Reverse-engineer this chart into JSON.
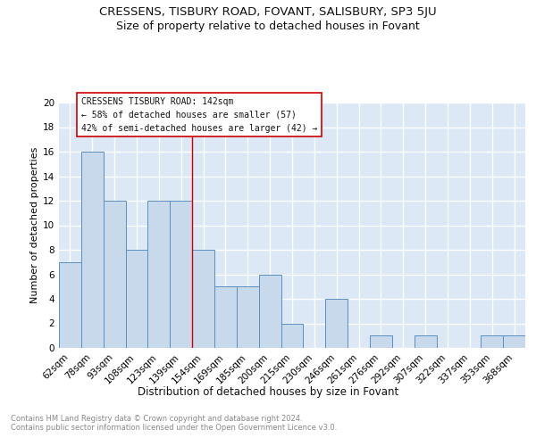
{
  "title1": "CRESSENS, TISBURY ROAD, FOVANT, SALISBURY, SP3 5JU",
  "title2": "Size of property relative to detached houses in Fovant",
  "xlabel": "Distribution of detached houses by size in Fovant",
  "ylabel": "Number of detached properties",
  "categories": [
    "62sqm",
    "78sqm",
    "93sqm",
    "108sqm",
    "123sqm",
    "139sqm",
    "154sqm",
    "169sqm",
    "185sqm",
    "200sqm",
    "215sqm",
    "230sqm",
    "246sqm",
    "261sqm",
    "276sqm",
    "292sqm",
    "307sqm",
    "322sqm",
    "337sqm",
    "353sqm",
    "368sqm"
  ],
  "values": [
    7,
    16,
    12,
    8,
    12,
    12,
    8,
    5,
    5,
    6,
    2,
    0,
    4,
    0,
    1,
    0,
    1,
    0,
    0,
    1,
    1
  ],
  "bar_color": "#c9d9ec",
  "bar_edge_color": "#5a8fc0",
  "background_color": "#dce8f5",
  "grid_color": "#ffffff",
  "vline_x": 5.5,
  "vline_color": "#cc0000",
  "annotation_text": "CRESSENS TISBURY ROAD: 142sqm\n← 58% of detached houses are smaller (57)\n42% of semi-detached houses are larger (42) →",
  "annotation_box_color": "#ffffff",
  "annotation_box_edge": "#cc0000",
  "ylim": [
    0,
    20
  ],
  "yticks": [
    0,
    2,
    4,
    6,
    8,
    10,
    12,
    14,
    16,
    18,
    20
  ],
  "footer": "Contains HM Land Registry data © Crown copyright and database right 2024.\nContains public sector information licensed under the Open Government Licence v3.0.",
  "title1_fontsize": 9.5,
  "title2_fontsize": 9,
  "xlabel_fontsize": 8.5,
  "ylabel_fontsize": 8,
  "tick_fontsize": 7.5,
  "annotation_fontsize": 7,
  "footer_fontsize": 6
}
